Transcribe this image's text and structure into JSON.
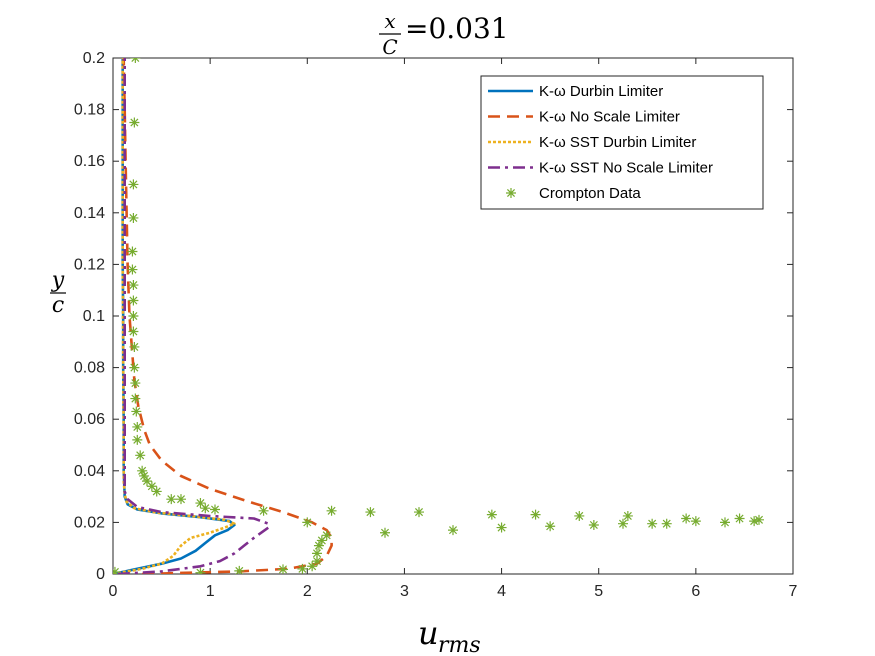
{
  "chart_data": {
    "type": "line",
    "title": {
      "numerator": "x",
      "denominator": "C",
      "value": "=0.031"
    },
    "xlabel": "u",
    "xlabel_sub": "rms",
    "ylabel": {
      "numerator": "y",
      "denominator": "c"
    },
    "xlim": [
      0,
      7
    ],
    "ylim": [
      0,
      0.2
    ],
    "xticks": [
      "0",
      "1",
      "2",
      "3",
      "4",
      "5",
      "6",
      "7"
    ],
    "yticks": [
      "0",
      "0.02",
      "0.04",
      "0.06",
      "0.08",
      "0.1",
      "0.12",
      "0.14",
      "0.16",
      "0.18",
      "0.2"
    ],
    "grid": false,
    "legend_position": "top-right",
    "series": [
      {
        "name": "K-ω Durbin Limiter",
        "color": "#0072BD",
        "style": "solid",
        "points": [
          [
            0.0,
            0.0
          ],
          [
            0.25,
            0.002
          ],
          [
            0.5,
            0.004
          ],
          [
            0.7,
            0.006
          ],
          [
            0.85,
            0.009
          ],
          [
            0.95,
            0.012
          ],
          [
            1.05,
            0.015
          ],
          [
            1.18,
            0.017
          ],
          [
            1.25,
            0.019
          ],
          [
            1.2,
            0.0205
          ],
          [
            0.9,
            0.022
          ],
          [
            0.5,
            0.0235
          ],
          [
            0.25,
            0.025
          ],
          [
            0.15,
            0.027
          ],
          [
            0.12,
            0.03
          ],
          [
            0.115,
            0.035
          ],
          [
            0.11,
            0.04
          ],
          [
            0.11,
            0.06
          ],
          [
            0.105,
            0.08
          ],
          [
            0.105,
            0.1
          ],
          [
            0.1,
            0.12
          ],
          [
            0.1,
            0.14
          ],
          [
            0.1,
            0.16
          ],
          [
            0.1,
            0.18
          ],
          [
            0.1,
            0.2
          ]
        ]
      },
      {
        "name": "K-ω No Scale Limiter",
        "color": "#D95319",
        "style": "dashed",
        "points": [
          [
            0.3,
            0.0
          ],
          [
            0.8,
            0.0005
          ],
          [
            1.3,
            0.001
          ],
          [
            1.8,
            0.002
          ],
          [
            2.1,
            0.004
          ],
          [
            2.2,
            0.007
          ],
          [
            2.25,
            0.011
          ],
          [
            2.25,
            0.014
          ],
          [
            2.2,
            0.017
          ],
          [
            2.05,
            0.02
          ],
          [
            1.75,
            0.024
          ],
          [
            1.4,
            0.028
          ],
          [
            1.0,
            0.033
          ],
          [
            0.7,
            0.038
          ],
          [
            0.5,
            0.044
          ],
          [
            0.38,
            0.05
          ],
          [
            0.32,
            0.056
          ],
          [
            0.26,
            0.065
          ],
          [
            0.22,
            0.075
          ],
          [
            0.2,
            0.085
          ],
          [
            0.17,
            0.1
          ],
          [
            0.15,
            0.12
          ],
          [
            0.14,
            0.14
          ],
          [
            0.13,
            0.16
          ],
          [
            0.12,
            0.18
          ],
          [
            0.11,
            0.2
          ]
        ]
      },
      {
        "name": "K-ω SST Durbin Limiter",
        "color": "#EDB120",
        "style": "dotted",
        "points": [
          [
            0.0,
            0.0
          ],
          [
            0.3,
            0.002
          ],
          [
            0.5,
            0.004
          ],
          [
            0.62,
            0.007
          ],
          [
            0.7,
            0.011
          ],
          [
            0.8,
            0.014
          ],
          [
            1.0,
            0.016
          ],
          [
            1.15,
            0.018
          ],
          [
            1.25,
            0.0195
          ],
          [
            1.15,
            0.021
          ],
          [
            0.8,
            0.0225
          ],
          [
            0.45,
            0.0238
          ],
          [
            0.22,
            0.0255
          ],
          [
            0.14,
            0.028
          ],
          [
            0.12,
            0.031
          ],
          [
            0.11,
            0.036
          ],
          [
            0.11,
            0.05
          ],
          [
            0.105,
            0.08
          ],
          [
            0.1,
            0.12
          ],
          [
            0.1,
            0.16
          ],
          [
            0.1,
            0.2
          ]
        ]
      },
      {
        "name": "K-ω SST No Scale Limiter",
        "color": "#7E2F8E",
        "style": "dashdot",
        "points": [
          [
            0.05,
            0.0
          ],
          [
            0.5,
            0.001
          ],
          [
            0.9,
            0.003
          ],
          [
            1.1,
            0.005
          ],
          [
            1.25,
            0.008
          ],
          [
            1.35,
            0.011
          ],
          [
            1.45,
            0.014
          ],
          [
            1.6,
            0.018
          ],
          [
            1.6,
            0.0195
          ],
          [
            1.45,
            0.0215
          ],
          [
            1.0,
            0.0225
          ],
          [
            0.5,
            0.024
          ],
          [
            0.25,
            0.026
          ],
          [
            0.15,
            0.029
          ],
          [
            0.12,
            0.032
          ],
          [
            0.12,
            0.04
          ],
          [
            0.12,
            0.06
          ],
          [
            0.12,
            0.1
          ],
          [
            0.12,
            0.14
          ],
          [
            0.12,
            0.18
          ],
          [
            0.12,
            0.2
          ]
        ]
      },
      {
        "name": "Crompton Data",
        "color": "#77AC30",
        "style": "markers",
        "points": [
          [
            0.02,
            0.0008
          ],
          [
            0.9,
            0.0005
          ],
          [
            1.3,
            0.0012
          ],
          [
            1.75,
            0.0018
          ],
          [
            1.95,
            0.002
          ],
          [
            2.05,
            0.003
          ],
          [
            2.1,
            0.005
          ],
          [
            2.1,
            0.008
          ],
          [
            2.12,
            0.011
          ],
          [
            2.15,
            0.013
          ],
          [
            2.2,
            0.015
          ],
          [
            2.0,
            0.02
          ],
          [
            1.55,
            0.0245
          ],
          [
            1.05,
            0.025
          ],
          [
            0.95,
            0.0255
          ],
          [
            0.9,
            0.0275
          ],
          [
            0.7,
            0.029
          ],
          [
            0.6,
            0.029
          ],
          [
            0.45,
            0.032
          ],
          [
            0.4,
            0.034
          ],
          [
            0.35,
            0.036
          ],
          [
            0.32,
            0.038
          ],
          [
            0.3,
            0.04
          ],
          [
            0.28,
            0.046
          ],
          [
            0.25,
            0.052
          ],
          [
            0.25,
            0.057
          ],
          [
            0.24,
            0.063
          ],
          [
            0.23,
            0.068
          ],
          [
            0.23,
            0.074
          ],
          [
            0.22,
            0.08
          ],
          [
            0.22,
            0.088
          ],
          [
            0.21,
            0.094
          ],
          [
            0.21,
            0.1
          ],
          [
            0.21,
            0.106
          ],
          [
            0.21,
            0.112
          ],
          [
            0.2,
            0.118
          ],
          [
            0.2,
            0.125
          ],
          [
            0.21,
            0.138
          ],
          [
            0.21,
            0.151
          ],
          [
            0.22,
            0.175
          ],
          [
            0.23,
            0.2
          ],
          [
            2.25,
            0.0245
          ],
          [
            2.65,
            0.024
          ],
          [
            2.8,
            0.016
          ],
          [
            3.15,
            0.024
          ],
          [
            3.5,
            0.017
          ],
          [
            3.9,
            0.023
          ],
          [
            4.0,
            0.018
          ],
          [
            4.35,
            0.023
          ],
          [
            4.5,
            0.0185
          ],
          [
            4.8,
            0.0225
          ],
          [
            4.95,
            0.019
          ],
          [
            5.25,
            0.0195
          ],
          [
            5.3,
            0.0225
          ],
          [
            5.55,
            0.0195
          ],
          [
            5.7,
            0.0195
          ],
          [
            5.9,
            0.0215
          ],
          [
            6.0,
            0.0205
          ],
          [
            6.3,
            0.02
          ],
          [
            6.45,
            0.0215
          ],
          [
            6.6,
            0.0205
          ],
          [
            6.65,
            0.021
          ]
        ]
      }
    ]
  }
}
